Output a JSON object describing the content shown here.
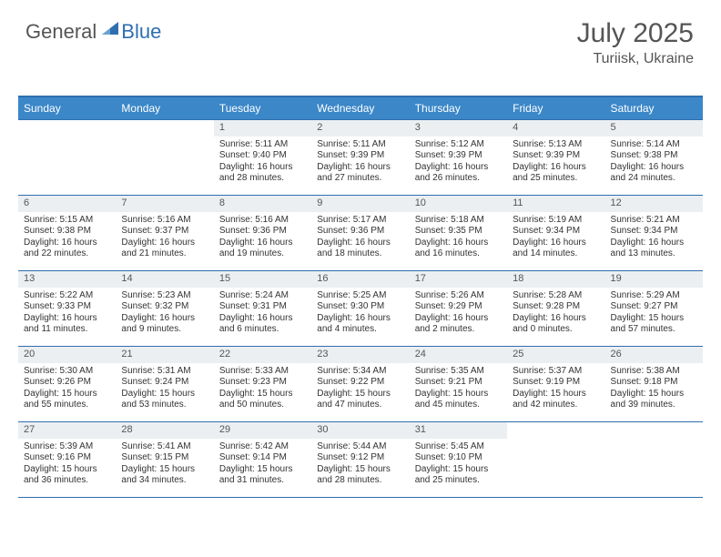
{
  "brand": {
    "part1": "General",
    "part2": "Blue"
  },
  "title": {
    "month": "July 2025",
    "location": "Turiisk, Ukraine"
  },
  "colors": {
    "header_bg": "#3b87c8",
    "border": "#2f6fb0",
    "daynum_bg": "#eceff1",
    "brand_blue": "#2f6fb0",
    "text": "#555555"
  },
  "weekdays": [
    "Sunday",
    "Monday",
    "Tuesday",
    "Wednesday",
    "Thursday",
    "Friday",
    "Saturday"
  ],
  "weeks": [
    [
      null,
      null,
      {
        "n": "1",
        "sr": "Sunrise: 5:11 AM",
        "ss": "Sunset: 9:40 PM",
        "d1": "Daylight: 16 hours",
        "d2": "and 28 minutes."
      },
      {
        "n": "2",
        "sr": "Sunrise: 5:11 AM",
        "ss": "Sunset: 9:39 PM",
        "d1": "Daylight: 16 hours",
        "d2": "and 27 minutes."
      },
      {
        "n": "3",
        "sr": "Sunrise: 5:12 AM",
        "ss": "Sunset: 9:39 PM",
        "d1": "Daylight: 16 hours",
        "d2": "and 26 minutes."
      },
      {
        "n": "4",
        "sr": "Sunrise: 5:13 AM",
        "ss": "Sunset: 9:39 PM",
        "d1": "Daylight: 16 hours",
        "d2": "and 25 minutes."
      },
      {
        "n": "5",
        "sr": "Sunrise: 5:14 AM",
        "ss": "Sunset: 9:38 PM",
        "d1": "Daylight: 16 hours",
        "d2": "and 24 minutes."
      }
    ],
    [
      {
        "n": "6",
        "sr": "Sunrise: 5:15 AM",
        "ss": "Sunset: 9:38 PM",
        "d1": "Daylight: 16 hours",
        "d2": "and 22 minutes."
      },
      {
        "n": "7",
        "sr": "Sunrise: 5:16 AM",
        "ss": "Sunset: 9:37 PM",
        "d1": "Daylight: 16 hours",
        "d2": "and 21 minutes."
      },
      {
        "n": "8",
        "sr": "Sunrise: 5:16 AM",
        "ss": "Sunset: 9:36 PM",
        "d1": "Daylight: 16 hours",
        "d2": "and 19 minutes."
      },
      {
        "n": "9",
        "sr": "Sunrise: 5:17 AM",
        "ss": "Sunset: 9:36 PM",
        "d1": "Daylight: 16 hours",
        "d2": "and 18 minutes."
      },
      {
        "n": "10",
        "sr": "Sunrise: 5:18 AM",
        "ss": "Sunset: 9:35 PM",
        "d1": "Daylight: 16 hours",
        "d2": "and 16 minutes."
      },
      {
        "n": "11",
        "sr": "Sunrise: 5:19 AM",
        "ss": "Sunset: 9:34 PM",
        "d1": "Daylight: 16 hours",
        "d2": "and 14 minutes."
      },
      {
        "n": "12",
        "sr": "Sunrise: 5:21 AM",
        "ss": "Sunset: 9:34 PM",
        "d1": "Daylight: 16 hours",
        "d2": "and 13 minutes."
      }
    ],
    [
      {
        "n": "13",
        "sr": "Sunrise: 5:22 AM",
        "ss": "Sunset: 9:33 PM",
        "d1": "Daylight: 16 hours",
        "d2": "and 11 minutes."
      },
      {
        "n": "14",
        "sr": "Sunrise: 5:23 AM",
        "ss": "Sunset: 9:32 PM",
        "d1": "Daylight: 16 hours",
        "d2": "and 9 minutes."
      },
      {
        "n": "15",
        "sr": "Sunrise: 5:24 AM",
        "ss": "Sunset: 9:31 PM",
        "d1": "Daylight: 16 hours",
        "d2": "and 6 minutes."
      },
      {
        "n": "16",
        "sr": "Sunrise: 5:25 AM",
        "ss": "Sunset: 9:30 PM",
        "d1": "Daylight: 16 hours",
        "d2": "and 4 minutes."
      },
      {
        "n": "17",
        "sr": "Sunrise: 5:26 AM",
        "ss": "Sunset: 9:29 PM",
        "d1": "Daylight: 16 hours",
        "d2": "and 2 minutes."
      },
      {
        "n": "18",
        "sr": "Sunrise: 5:28 AM",
        "ss": "Sunset: 9:28 PM",
        "d1": "Daylight: 16 hours",
        "d2": "and 0 minutes."
      },
      {
        "n": "19",
        "sr": "Sunrise: 5:29 AM",
        "ss": "Sunset: 9:27 PM",
        "d1": "Daylight: 15 hours",
        "d2": "and 57 minutes."
      }
    ],
    [
      {
        "n": "20",
        "sr": "Sunrise: 5:30 AM",
        "ss": "Sunset: 9:26 PM",
        "d1": "Daylight: 15 hours",
        "d2": "and 55 minutes."
      },
      {
        "n": "21",
        "sr": "Sunrise: 5:31 AM",
        "ss": "Sunset: 9:24 PM",
        "d1": "Daylight: 15 hours",
        "d2": "and 53 minutes."
      },
      {
        "n": "22",
        "sr": "Sunrise: 5:33 AM",
        "ss": "Sunset: 9:23 PM",
        "d1": "Daylight: 15 hours",
        "d2": "and 50 minutes."
      },
      {
        "n": "23",
        "sr": "Sunrise: 5:34 AM",
        "ss": "Sunset: 9:22 PM",
        "d1": "Daylight: 15 hours",
        "d2": "and 47 minutes."
      },
      {
        "n": "24",
        "sr": "Sunrise: 5:35 AM",
        "ss": "Sunset: 9:21 PM",
        "d1": "Daylight: 15 hours",
        "d2": "and 45 minutes."
      },
      {
        "n": "25",
        "sr": "Sunrise: 5:37 AM",
        "ss": "Sunset: 9:19 PM",
        "d1": "Daylight: 15 hours",
        "d2": "and 42 minutes."
      },
      {
        "n": "26",
        "sr": "Sunrise: 5:38 AM",
        "ss": "Sunset: 9:18 PM",
        "d1": "Daylight: 15 hours",
        "d2": "and 39 minutes."
      }
    ],
    [
      {
        "n": "27",
        "sr": "Sunrise: 5:39 AM",
        "ss": "Sunset: 9:16 PM",
        "d1": "Daylight: 15 hours",
        "d2": "and 36 minutes."
      },
      {
        "n": "28",
        "sr": "Sunrise: 5:41 AM",
        "ss": "Sunset: 9:15 PM",
        "d1": "Daylight: 15 hours",
        "d2": "and 34 minutes."
      },
      {
        "n": "29",
        "sr": "Sunrise: 5:42 AM",
        "ss": "Sunset: 9:14 PM",
        "d1": "Daylight: 15 hours",
        "d2": "and 31 minutes."
      },
      {
        "n": "30",
        "sr": "Sunrise: 5:44 AM",
        "ss": "Sunset: 9:12 PM",
        "d1": "Daylight: 15 hours",
        "d2": "and 28 minutes."
      },
      {
        "n": "31",
        "sr": "Sunrise: 5:45 AM",
        "ss": "Sunset: 9:10 PM",
        "d1": "Daylight: 15 hours",
        "d2": "and 25 minutes."
      },
      null,
      null
    ]
  ]
}
